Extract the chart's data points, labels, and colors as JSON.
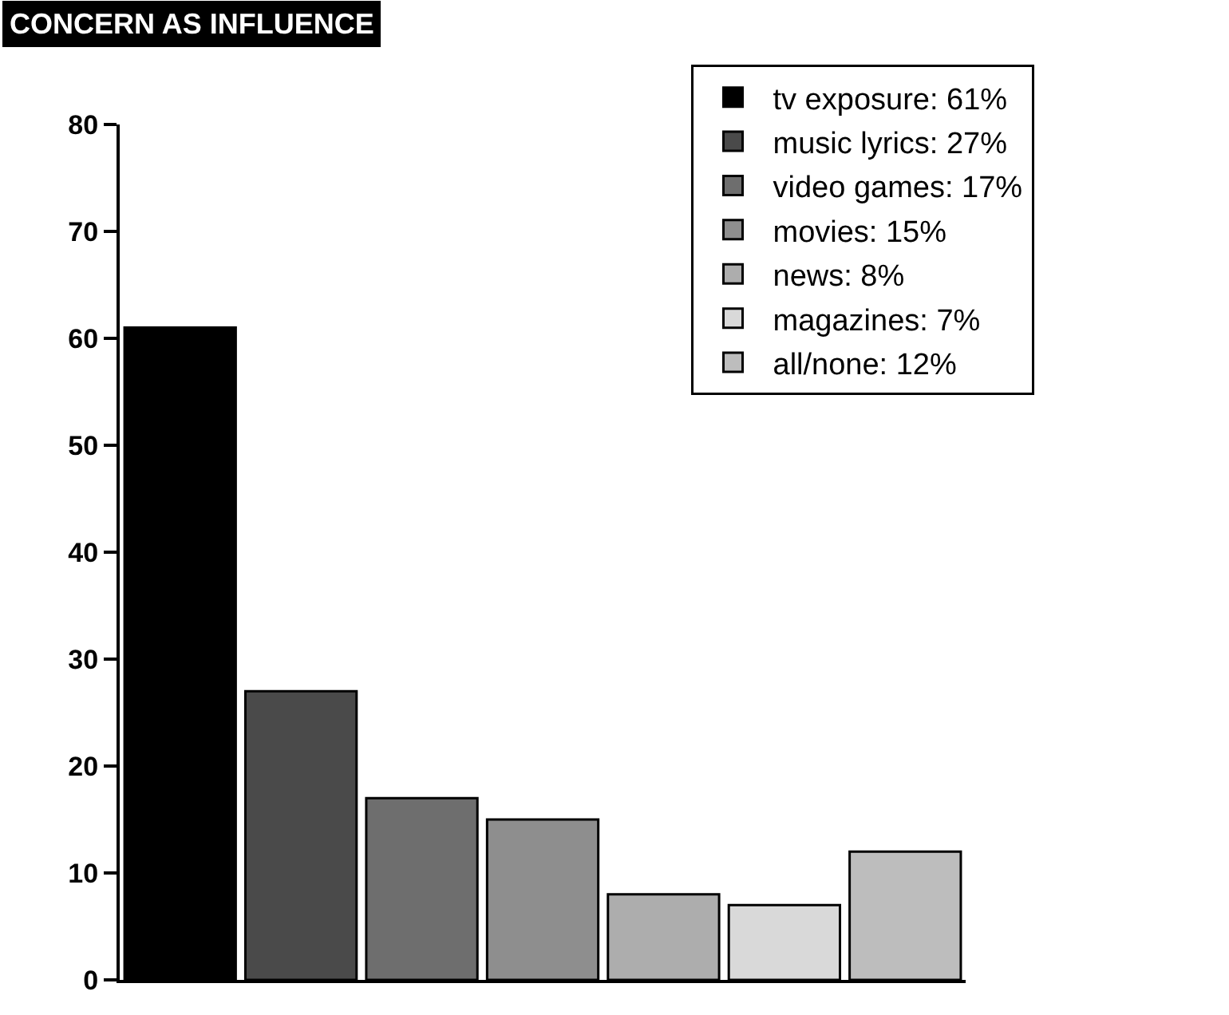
{
  "chart_data": {
    "type": "bar",
    "title": "CONCERN AS INFLUENCE",
    "categories": [
      null,
      null,
      null,
      null,
      null,
      null,
      null
    ],
    "series": [
      {
        "name": "tv exposure: 61%",
        "color": "#000000",
        "values": [
          61,
          null,
          null,
          null,
          null,
          null,
          null
        ]
      },
      {
        "name": "music lyrics: 27%",
        "color": "#4a4a4a",
        "values": [
          null,
          27,
          null,
          null,
          null,
          null,
          null
        ]
      },
      {
        "name": "video games: 17%",
        "color": "#6e6e6e",
        "values": [
          null,
          null,
          17,
          null,
          null,
          null,
          null
        ]
      },
      {
        "name": "movies: 15%",
        "color": "#8e8e8e",
        "values": [
          null,
          null,
          null,
          15,
          null,
          null,
          null
        ]
      },
      {
        "name": "news: 8%",
        "color": "#adadad",
        "values": [
          null,
          null,
          null,
          null,
          8,
          null,
          null
        ]
      },
      {
        "name": "magazines: 7%",
        "color": "#d9d9d9",
        "values": [
          null,
          null,
          null,
          null,
          null,
          7,
          null
        ]
      },
      {
        "name": "all/none: 12%",
        "color": "#bdbdbd",
        "values": [
          null,
          null,
          null,
          null,
          null,
          null,
          12
        ]
      }
    ],
    "ylim": [
      0,
      80
    ],
    "yticks": [
      0,
      10,
      20,
      30,
      40,
      50,
      60,
      70,
      80
    ],
    "legend": "top right"
  }
}
